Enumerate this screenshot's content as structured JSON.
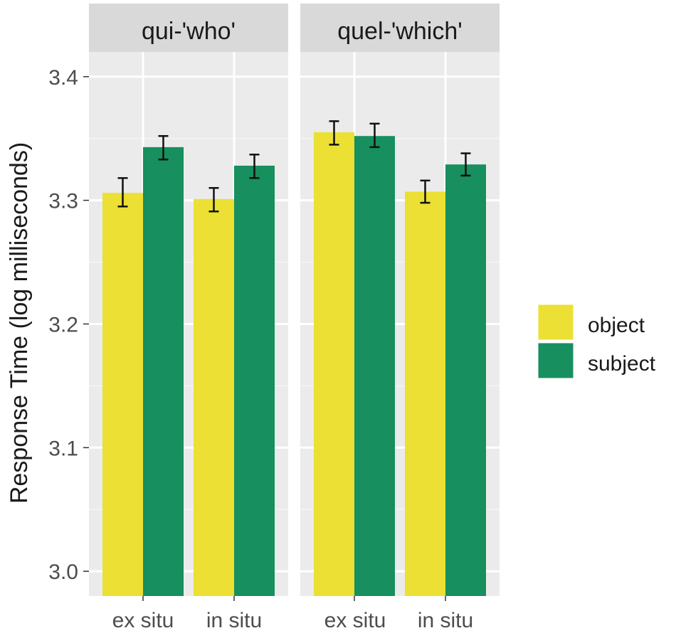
{
  "chart_data": {
    "type": "bar",
    "title": "",
    "xlabel": "",
    "ylabel": "Response Time (log milliseconds)",
    "ylim": [
      2.98,
      3.42
    ],
    "yticks": [
      3.0,
      3.1,
      3.2,
      3.3,
      3.4
    ],
    "ytick_labels": [
      "3.0",
      "3.1",
      "3.2",
      "3.3",
      "3.4"
    ],
    "grid": true,
    "legend_position": "right",
    "categories": [
      "ex situ",
      "in situ"
    ],
    "legend": [
      {
        "name": "object",
        "color": "#EBE033"
      },
      {
        "name": "subject",
        "color": "#178F5E"
      }
    ],
    "panels": [
      {
        "facet": "qui-'who'",
        "series": [
          {
            "name": "object",
            "values": [
              3.306,
              3.301
            ],
            "err_low": [
              3.295,
              3.291
            ],
            "err_high": [
              3.318,
              3.31
            ]
          },
          {
            "name": "subject",
            "values": [
              3.343,
              3.328
            ],
            "err_low": [
              3.333,
              3.318
            ],
            "err_high": [
              3.352,
              3.337
            ]
          }
        ]
      },
      {
        "facet": "quel-'which'",
        "series": [
          {
            "name": "object",
            "values": [
              3.355,
              3.307
            ],
            "err_low": [
              3.345,
              3.298
            ],
            "err_high": [
              3.364,
              3.316
            ]
          },
          {
            "name": "subject",
            "values": [
              3.352,
              3.329
            ],
            "err_low": [
              3.343,
              3.32
            ],
            "err_high": [
              3.362,
              3.338
            ]
          }
        ]
      }
    ]
  },
  "legend": {
    "items": [
      {
        "label": "object",
        "color": "#EBE033"
      },
      {
        "label": "subject",
        "color": "#178F5E"
      }
    ]
  },
  "panels": [
    {
      "strip_label": "qui-'who'",
      "x_labels": [
        "ex situ",
        "in situ"
      ]
    },
    {
      "strip_label": "quel-'which'",
      "x_labels": [
        "ex situ",
        "in situ"
      ]
    }
  ],
  "axis": {
    "ylabel": "Response Time (log milliseconds)",
    "yticks": [
      "3.0",
      "3.1",
      "3.2",
      "3.3",
      "3.4"
    ]
  },
  "colors": {
    "panel_bg": "#EBEBEB",
    "strip_bg": "#D9D9D9",
    "grid": "#FFFFFF",
    "text": "#4D4D4D",
    "strip_text": "#1A1A1A"
  }
}
